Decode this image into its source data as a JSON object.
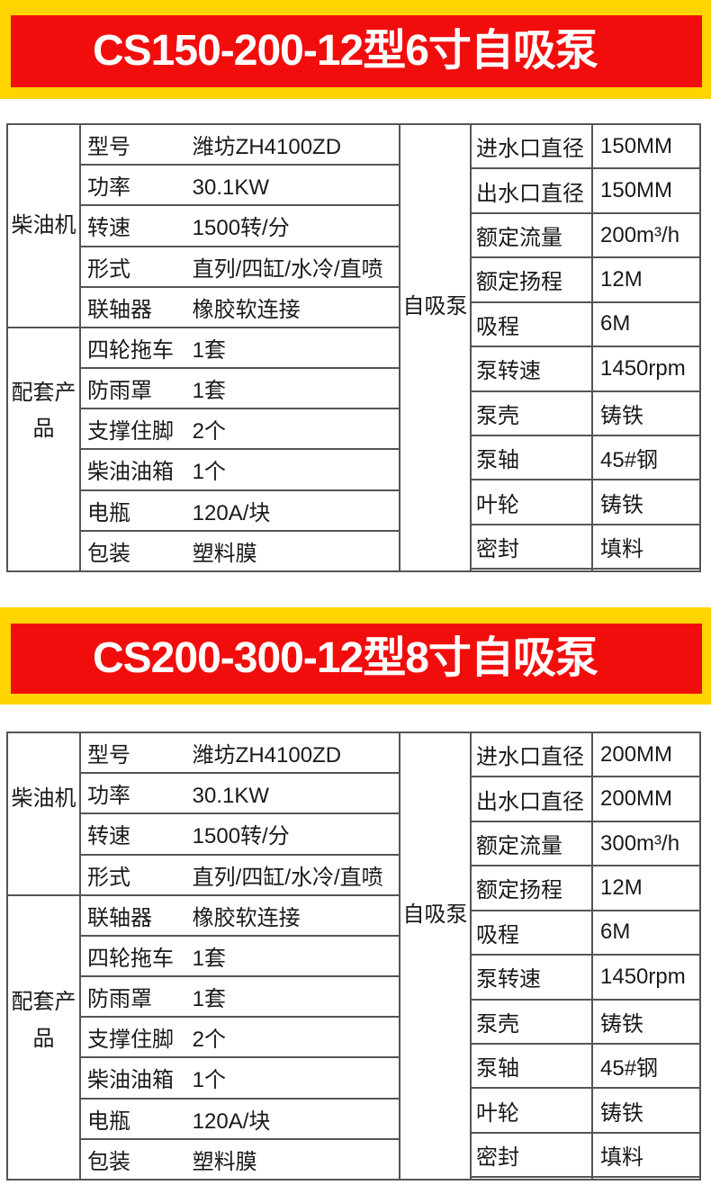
{
  "colors": {
    "band_yellow": "#FFD400",
    "banner_red": "#F20D0D",
    "banner_text": "#FFFFFF",
    "table_border": "#555555",
    "table_text": "#1A1A1A"
  },
  "products": [
    {
      "banner": "CS150-200-12型6寸自吸泵",
      "left_groups": [
        {
          "label": "柴油机",
          "rows": [
            {
              "label": "型号",
              "value": "潍坊ZH4100ZD"
            },
            {
              "label": "功率",
              "value": "30.1KW"
            },
            {
              "label": "转速",
              "value": "1500转/分"
            },
            {
              "label": "形式",
              "value": "直列/四缸/水冷/直喷"
            },
            {
              "label": "联轴器",
              "value": "橡胶软连接"
            }
          ]
        },
        {
          "label": "配套产品",
          "rows": [
            {
              "label": "四轮拖车",
              "value": "1套"
            },
            {
              "label": "防雨罩",
              "value": "1套"
            },
            {
              "label": "支撑住脚",
              "value": "2个"
            },
            {
              "label": "柴油油箱",
              "value": "1个"
            },
            {
              "label": "电瓶",
              "value": "120A/块"
            },
            {
              "label": "包装",
              "value": "塑料膜"
            }
          ]
        }
      ],
      "pump": {
        "label": "自吸泵",
        "rows": [
          {
            "label": "进水口直径",
            "value": "150MM"
          },
          {
            "label": "出水口直径",
            "value": "150MM"
          },
          {
            "label": "额定流量",
            "value": "200m³/h"
          },
          {
            "label": "额定扬程",
            "value": "12M"
          },
          {
            "label": "吸程",
            "value": "6M"
          },
          {
            "label": "泵转速",
            "value": "1450rpm"
          },
          {
            "label": "泵壳",
            "value": "铸铁"
          },
          {
            "label": "泵轴",
            "value": "45#钢"
          },
          {
            "label": "叶轮",
            "value": "铸铁"
          },
          {
            "label": "密封",
            "value": "填料"
          }
        ]
      }
    },
    {
      "banner": "CS200-300-12型8寸自吸泵",
      "left_groups": [
        {
          "label": "柴油机",
          "rows": [
            {
              "label": "型号",
              "value": "潍坊ZH4100ZD"
            },
            {
              "label": "功率",
              "value": "30.1KW"
            },
            {
              "label": "转速",
              "value": "1500转/分"
            },
            {
              "label": "形式",
              "value": "直列/四缸/水冷/直喷"
            }
          ]
        },
        {
          "label": "配套产品",
          "rows": [
            {
              "label": "联轴器",
              "value": "橡胶软连接"
            },
            {
              "label": "四轮拖车",
              "value": "1套"
            },
            {
              "label": "防雨罩",
              "value": "1套"
            },
            {
              "label": "支撑住脚",
              "value": "2个"
            },
            {
              "label": "柴油油箱",
              "value": "1个"
            },
            {
              "label": "电瓶",
              "value": "120A/块"
            },
            {
              "label": "包装",
              "value": "塑料膜"
            }
          ]
        }
      ],
      "pump": {
        "label": "自吸泵",
        "rows": [
          {
            "label": "进水口直径",
            "value": "200MM"
          },
          {
            "label": "出水口直径",
            "value": "200MM"
          },
          {
            "label": "额定流量",
            "value": "300m³/h"
          },
          {
            "label": "额定扬程",
            "value": "12M"
          },
          {
            "label": "吸程",
            "value": "6M"
          },
          {
            "label": "泵转速",
            "value": "1450rpm"
          },
          {
            "label": "泵壳",
            "value": "铸铁"
          },
          {
            "label": "泵轴",
            "value": "45#钢"
          },
          {
            "label": "叶轮",
            "value": "铸铁"
          },
          {
            "label": "密封",
            "value": "填料"
          }
        ]
      }
    }
  ]
}
